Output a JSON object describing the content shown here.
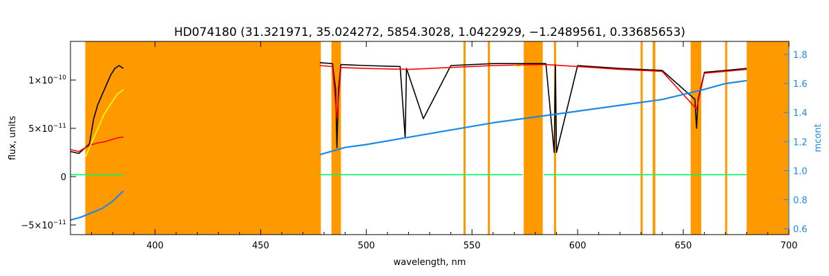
{
  "chart_data": {
    "type": "line",
    "title": "HD074180    (31.321971, 35.024272, 5854.3028, 1.0422929, −1.2489561, 0.33685653)",
    "xlabel": "wavelength, nm",
    "ylabel": "flux, units",
    "y2label": "mcont",
    "xlim": [
      360,
      700
    ],
    "ylim": [
      -6e-11,
      1.4e-10
    ],
    "y2lim": [
      0.56,
      1.89
    ],
    "x_ticks": [
      400,
      450,
      500,
      550,
      600,
      650,
      700
    ],
    "y_ticks": [
      {
        "value": -5e-11,
        "mant": "−5×10",
        "exp": "−11"
      },
      {
        "value": 0,
        "mant": "0",
        "exp": ""
      },
      {
        "value": 5e-11,
        "mant": "5×10",
        "exp": "−11"
      },
      {
        "value": 1e-10,
        "mant": "1×10",
        "exp": "−10"
      }
    ],
    "y2_ticks": [
      0.6,
      0.8,
      1.0,
      1.2,
      1.4,
      1.6,
      1.8
    ],
    "grid": false,
    "masked_regions": [
      [
        367,
        478.5
      ],
      [
        483.5,
        488
      ],
      [
        546,
        547
      ],
      [
        557.5,
        558.5
      ],
      [
        574.5,
        583.5
      ],
      [
        588.8,
        589.8
      ],
      [
        629.8,
        630.8
      ],
      [
        635.5,
        636.8
      ],
      [
        653.5,
        658.5
      ],
      [
        669.8,
        670.8
      ],
      [
        680,
        700
      ]
    ],
    "series": [
      {
        "role": "observed",
        "color": "#000000",
        "segments": [
          {
            "x": [
              360,
              364,
              367,
              369,
              371,
              373,
              375,
              377,
              379,
              381,
              383,
              385
            ],
            "y": [
              2.6e-11,
              2.4e-11,
              3e-11,
              3.4e-11,
              6e-11,
              7.5e-11,
              8.5e-11,
              9.5e-11,
              1.05e-10,
              1.12e-10,
              1.15e-10,
              1.12e-10
            ]
          },
          {
            "x": [
              478,
              484,
              485.5,
              486.1,
              486.8,
              488,
              500,
              516,
              518.4,
              519,
              527,
              540,
              560,
              585,
              588.9,
              589.5,
              590,
              600,
              620,
              640,
              655.5,
              656.3,
              657,
              660,
              670,
              680
            ],
            "y": [
              1.18e-10,
              1.17e-10,
              9e-11,
              3e-11,
              9e-11,
              1.16e-10,
              1.15e-10,
              1.14e-10,
              4e-11,
              1.12e-10,
              6e-11,
              1.15e-10,
              1.17e-10,
              1.17e-10,
              2.5e-11,
              1.16e-10,
              2.5e-11,
              1.15e-10,
              1.12e-10,
              1.1e-10,
              8e-11,
              5e-11,
              8e-11,
              1.08e-10,
              1.1e-10,
              1.12e-10
            ]
          }
        ]
      },
      {
        "role": "model",
        "color": "#ff0000",
        "segments": [
          {
            "x": [
              360,
              364,
              367,
              370,
              373,
              376,
              379,
              382,
              385
            ],
            "y": [
              2.8e-11,
              2.6e-11,
              3e-11,
              3.3e-11,
              3.5e-11,
              3.6e-11,
              3.8e-11,
              4e-11,
              4.1e-11
            ]
          },
          {
            "x": [
              478,
              484,
              486.1,
              488,
              500,
              520,
              540,
              560,
              585,
              600,
              620,
              640,
              656.3,
              660,
              680
            ],
            "y": [
              1.15e-10,
              1.14e-10,
              6e-11,
              1.13e-10,
              1.12e-10,
              1.11e-10,
              1.13e-10,
              1.15e-10,
              1.16e-10,
              1.14e-10,
              1.11e-10,
              1.09e-10,
              7e-11,
              1.07e-10,
              1.11e-10
            ]
          }
        ]
      },
      {
        "role": "highlight",
        "color": "#ffff00",
        "segments": [
          {
            "x": [
              367,
              370,
              373,
              376,
              379,
              382,
              385
            ],
            "y": [
              2e-11,
              3.5e-11,
              5e-11,
              6.5e-11,
              7.5e-11,
              8.5e-11,
              9e-11
            ]
          },
          {
            "x": [
              570,
              572,
              574
            ],
            "y": [
              1.15e-10,
              1.14e-10,
              1.15e-10
            ]
          }
        ]
      },
      {
        "role": "residual",
        "color": "#00ff66",
        "segments": [
          {
            "x": [
              360,
              385
            ],
            "y": [
              2e-12,
              2e-12
            ]
          },
          {
            "x": [
              478,
              574
            ],
            "y": [
              2e-12,
              2e-12
            ]
          },
          {
            "x": [
              584,
              680
            ],
            "y": [
              2e-12,
              2e-12
            ]
          }
        ]
      },
      {
        "role": "continuum",
        "color": "#1e88e5",
        "axis": "right",
        "segments": [
          {
            "x": [
              360,
              365,
              370,
              375,
              380,
              385
            ],
            "y": [
              0.66,
              0.68,
              0.71,
              0.74,
              0.79,
              0.86
            ]
          },
          {
            "x": [
              478,
              490,
              500,
              520,
              540,
              560,
              580,
              600,
              620,
              640,
              660,
              670,
              680
            ],
            "y": [
              1.11,
              1.16,
              1.18,
              1.23,
              1.28,
              1.33,
              1.37,
              1.41,
              1.45,
              1.49,
              1.56,
              1.6,
              1.62
            ]
          }
        ]
      }
    ]
  }
}
